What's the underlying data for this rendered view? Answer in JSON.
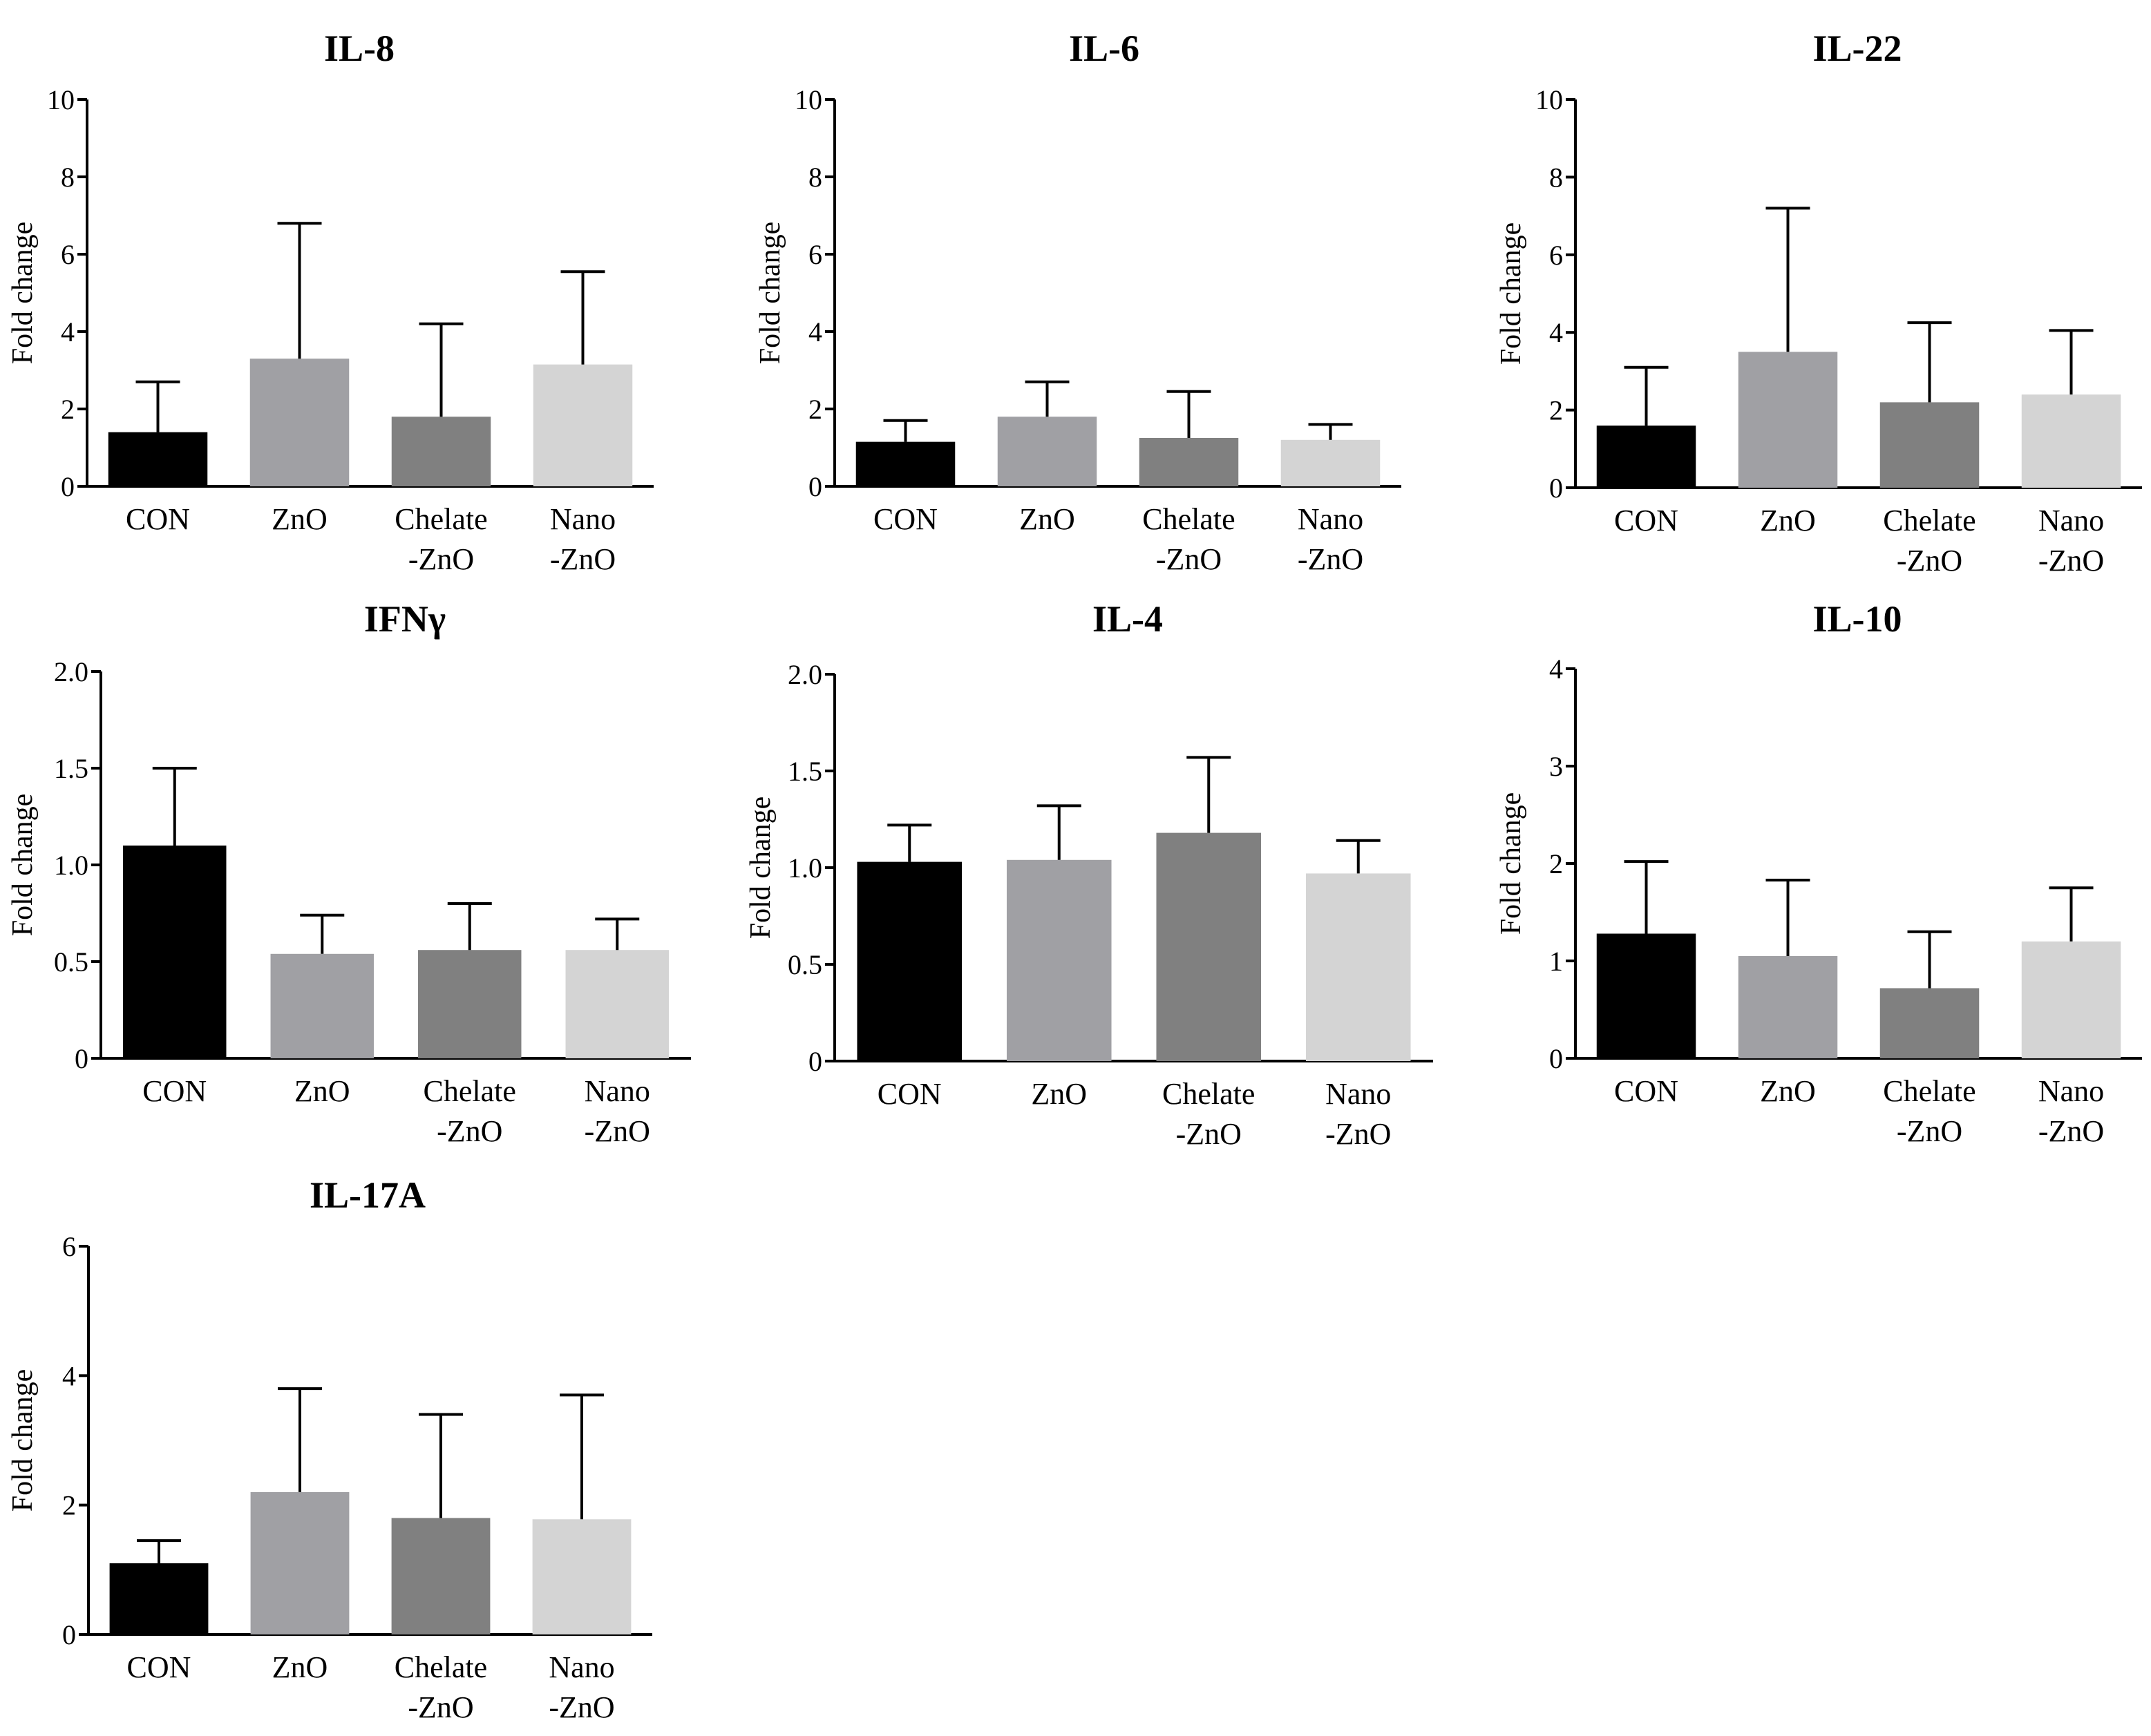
{
  "figure": {
    "category_labels": [
      [
        "CON"
      ],
      [
        "ZnO"
      ],
      [
        "Chelate",
        "-ZnO"
      ],
      [
        "Nano",
        "-ZnO"
      ]
    ],
    "bar_colors": [
      "#000000",
      "#a0a0a4",
      "#808080",
      "#d4d4d4"
    ]
  },
  "chart_data": [
    {
      "type": "bar",
      "title": "IL-8",
      "ylabel": "Fold change",
      "categories": [
        "CON",
        "ZnO",
        "Chelate-ZnO",
        "Nano-ZnO"
      ],
      "values": [
        1.4,
        3.3,
        1.8,
        3.15
      ],
      "errors": [
        1.3,
        3.5,
        2.4,
        2.4
      ],
      "ylim": [
        0,
        10
      ],
      "yticks": [
        0,
        2,
        4,
        6,
        8,
        10
      ],
      "ytick_labels": [
        "0",
        "2",
        "4",
        "6",
        "8",
        "10"
      ]
    },
    {
      "type": "bar",
      "title": "IL-6",
      "ylabel": "Fold change",
      "categories": [
        "CON",
        "ZnO",
        "Chelate-ZnO",
        "Nano-ZnO"
      ],
      "values": [
        1.15,
        1.8,
        1.25,
        1.2
      ],
      "errors": [
        0.55,
        0.9,
        1.2,
        0.4
      ],
      "ylim": [
        0,
        10
      ],
      "yticks": [
        0,
        2,
        4,
        6,
        8,
        10
      ],
      "ytick_labels": [
        "0",
        "2",
        "4",
        "6",
        "8",
        "10"
      ]
    },
    {
      "type": "bar",
      "title": "IL-22",
      "ylabel": "Fold change",
      "categories": [
        "CON",
        "ZnO",
        "Chelate-ZnO",
        "Nano-ZnO"
      ],
      "values": [
        1.6,
        3.5,
        2.2,
        2.4
      ],
      "errors": [
        1.5,
        3.7,
        2.05,
        1.65
      ],
      "ylim": [
        0,
        10
      ],
      "yticks": [
        0,
        2,
        4,
        6,
        8,
        10
      ],
      "ytick_labels": [
        "0",
        "2",
        "4",
        "6",
        "8",
        "10"
      ]
    },
    {
      "type": "bar",
      "title": "IFNγ",
      "ylabel": "Fold change",
      "categories": [
        "CON",
        "ZnO",
        "Chelate-ZnO",
        "Nano-ZnO"
      ],
      "values": [
        1.1,
        0.54,
        0.56,
        0.56
      ],
      "errors": [
        0.4,
        0.2,
        0.24,
        0.16
      ],
      "ylim": [
        0,
        2
      ],
      "yticks": [
        0,
        0.5,
        1.0,
        1.5,
        2.0
      ],
      "ytick_labels": [
        "0",
        "0.5",
        "1.0",
        "1.5",
        "2.0"
      ]
    },
    {
      "type": "bar",
      "title": "IL-4",
      "ylabel": "Fold change",
      "categories": [
        "CON",
        "ZnO",
        "Chelate-ZnO",
        "Nano-ZnO"
      ],
      "values": [
        1.03,
        1.04,
        1.18,
        0.97
      ],
      "errors": [
        0.19,
        0.28,
        0.39,
        0.17
      ],
      "ylim": [
        0,
        2
      ],
      "yticks": [
        0,
        0.5,
        1.0,
        1.5,
        2.0
      ],
      "ytick_labels": [
        "0",
        "0.5",
        "1.0",
        "1.5",
        "2.0"
      ]
    },
    {
      "type": "bar",
      "title": "IL-10",
      "ylabel": "Fold change",
      "categories": [
        "CON",
        "ZnO",
        "Chelate-ZnO",
        "Nano-ZnO"
      ],
      "values": [
        1.28,
        1.05,
        0.72,
        1.2
      ],
      "errors": [
        0.74,
        0.78,
        0.58,
        0.55
      ],
      "ylim": [
        0,
        4
      ],
      "yticks": [
        0,
        1,
        2,
        3,
        4
      ],
      "ytick_labels": [
        "0",
        "1",
        "2",
        "3",
        "4"
      ]
    },
    {
      "type": "bar",
      "title": "IL-17A",
      "ylabel": "Fold change",
      "categories": [
        "CON",
        "ZnO",
        "Chelate-ZnO",
        "Nano-ZnO"
      ],
      "values": [
        1.1,
        2.2,
        1.8,
        1.78
      ],
      "errors": [
        0.35,
        1.6,
        1.6,
        1.92
      ],
      "ylim": [
        0,
        6
      ],
      "yticks": [
        0,
        2,
        4,
        6
      ],
      "ytick_labels": [
        "0",
        "2",
        "4",
        "6"
      ]
    }
  ]
}
